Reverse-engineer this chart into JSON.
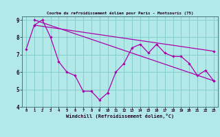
{
  "title": "Courbe du refroidissement éolien pour Paris - Montsouris (75)",
  "xlabel": "Windchill (Refroidissement éolien,°C)",
  "xlim": [
    -0.5,
    23.5
  ],
  "ylim": [
    4,
    9.2
  ],
  "yticks": [
    4,
    5,
    6,
    7,
    8,
    9
  ],
  "xticks": [
    0,
    1,
    2,
    3,
    4,
    5,
    6,
    7,
    8,
    9,
    10,
    11,
    12,
    13,
    14,
    15,
    16,
    17,
    18,
    19,
    20,
    21,
    22,
    23
  ],
  "bg_color": "#b2e8e8",
  "line_color": "#aa00aa",
  "grid_color": "#7ec8c8",
  "line1_y": [
    7.3,
    8.7,
    9.0,
    8.0,
    6.6,
    6.0,
    5.8,
    4.9,
    4.9,
    4.4,
    4.8,
    6.0,
    6.5,
    7.4,
    7.6,
    7.1,
    7.6,
    7.1,
    6.9,
    6.9,
    6.5,
    5.8,
    6.1,
    5.5
  ],
  "line2_x": [
    1,
    23
  ],
  "line2_y": [
    9.0,
    5.5
  ],
  "line3_x": [
    1,
    23
  ],
  "line3_y": [
    8.7,
    7.2
  ]
}
